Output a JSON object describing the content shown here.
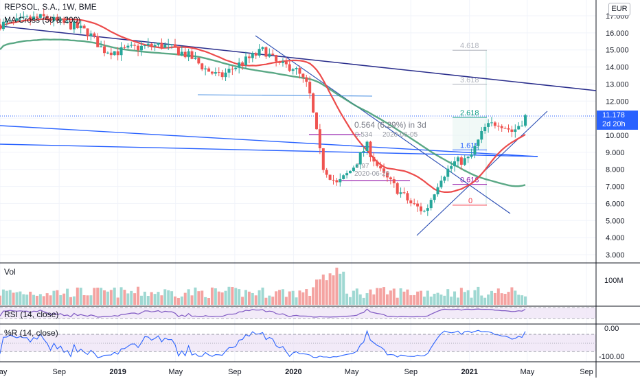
{
  "header": {
    "symbol_line": "REPSOL, S.A., 1W, BME",
    "ma_label": "MA Cross (50 & 200)",
    "currency": "EUR"
  },
  "price_tag": {
    "price": "11.178",
    "countdown": "2d 20h"
  },
  "annotations": {
    "measure": "0.564 (6.29%) in 3d",
    "note_a_value": "9.534",
    "note_a_date": "2020-06-05",
    "note_b_value": "7.97",
    "note_b_date": "2020-06-29"
  },
  "fib": {
    "levels": [
      {
        "label": "4.618",
        "value": 14.98,
        "color": "#b2b5be"
      },
      {
        "label": "3.618",
        "value": 12.98,
        "color": "#b2b5be"
      },
      {
        "label": "2.618",
        "value": 11.05,
        "color": "#089981"
      },
      {
        "label": "1.618",
        "value": 9.14,
        "color": "#2962ff"
      },
      {
        "label": "0.618",
        "value": 7.12,
        "color": "#9c27b0"
      },
      {
        "label": "0",
        "value": 5.9,
        "color": "#f23645"
      }
    ]
  },
  "panes": {
    "vol_label": "Vol",
    "vol_tick": "100M",
    "rsi_label": "RSI (14, close)",
    "wr_label": "%R (14, close)",
    "wr_ticks": [
      "0.00",
      "-100.00"
    ]
  },
  "chart_data": {
    "type": "candlestick",
    "title": "REPSOL, S.A., 1W, BME",
    "y_ticks": [
      "17.000",
      "16.000",
      "15.000",
      "14.000",
      "13.000",
      "12.000",
      "11.000",
      "10.000",
      "9.000",
      "8.000",
      "7.000",
      "6.000",
      "5.000",
      "4.000",
      "3.000"
    ],
    "x_ticks": [
      "May",
      "Sep",
      "2019",
      "May",
      "Sep",
      "2020",
      "May",
      "Sep",
      "2021",
      "May",
      "Sep"
    ],
    "ylim": [
      2.6,
      17.6
    ],
    "last_price": 11.178,
    "price_path": [
      [
        "2018-05",
        16.5
      ],
      [
        "2018-06",
        16.6
      ],
      [
        "2018-07",
        16.8
      ],
      [
        "2018-08",
        16.9
      ],
      [
        "2018-09",
        16.6
      ],
      [
        "2018-10",
        16.4
      ],
      [
        "2018-11",
        16.0
      ],
      [
        "2018-12",
        15.0
      ],
      [
        "2019-01",
        14.9
      ],
      [
        "2019-02",
        15.1
      ],
      [
        "2019-03",
        15.2
      ],
      [
        "2019-04",
        15.3
      ],
      [
        "2019-05",
        15.0
      ],
      [
        "2019-06",
        14.6
      ],
      [
        "2019-07",
        13.9
      ],
      [
        "2019-08",
        13.4
      ],
      [
        "2019-09",
        14.0
      ],
      [
        "2019-10",
        14.5
      ],
      [
        "2019-11",
        15.0
      ],
      [
        "2019-12",
        14.1
      ],
      [
        "2020-01",
        14.0
      ],
      [
        "2020-02",
        12.8
      ],
      [
        "2020-03",
        8.2
      ],
      [
        "2020-04",
        7.1
      ],
      [
        "2020-05",
        8.0
      ],
      [
        "2020-06",
        9.4
      ],
      [
        "2020-07",
        7.8
      ],
      [
        "2020-08",
        6.9
      ],
      [
        "2020-09",
        6.0
      ],
      [
        "2020-10",
        5.5
      ],
      [
        "2020-11",
        7.5
      ],
      [
        "2020-12",
        8.4
      ],
      [
        "2021-01",
        8.6
      ],
      [
        "2021-02",
        10.4
      ],
      [
        "2021-03",
        10.8
      ],
      [
        "2021-04",
        10.2
      ],
      [
        "2021-05",
        11.18
      ]
    ],
    "series": [
      {
        "name": "MA 50",
        "color": "#f23645"
      },
      {
        "name": "MA 200",
        "color": "#22ab94"
      }
    ]
  }
}
